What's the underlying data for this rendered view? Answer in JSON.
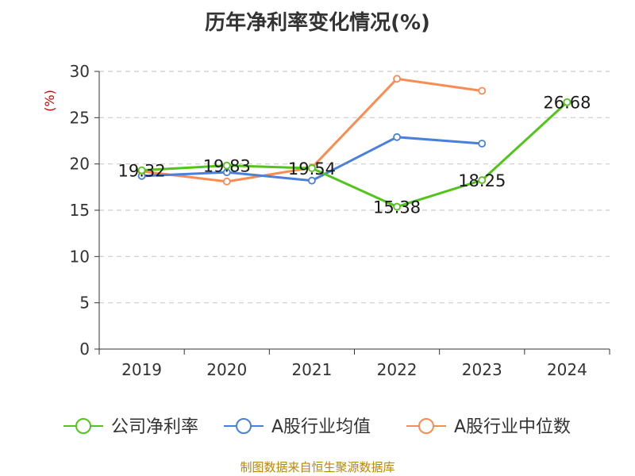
{
  "chart_data": {
    "type": "line",
    "title": "历年净利率变化情况(%)",
    "ylabel": "(%)",
    "xlabel": "",
    "categories": [
      "2019",
      "2020",
      "2021",
      "2022",
      "2023",
      "2024"
    ],
    "ylim": [
      0,
      30
    ],
    "yticks": [
      "0",
      "5",
      "10",
      "15",
      "20",
      "25",
      "30"
    ],
    "grid": "horizontal-dashed",
    "legend_position": "bottom",
    "series": [
      {
        "name": "公司净利率",
        "color": "#52c41a",
        "values": [
          19.32,
          19.83,
          19.54,
          15.38,
          18.25,
          26.68
        ],
        "labels": [
          "19.32",
          "19.83",
          "19.54",
          "15.38",
          "18.25",
          "26.68"
        ]
      },
      {
        "name": "A股行业均值",
        "color": "#4a7fdc",
        "values": [
          18.7,
          19.1,
          18.2,
          22.9,
          22.2,
          null
        ]
      },
      {
        "name": "A股行业中位数",
        "color": "#fa8c52",
        "values": [
          19.2,
          18.1,
          19.6,
          29.2,
          27.9,
          null
        ]
      }
    ]
  },
  "footer": "制图数据来自恒生聚源数据库"
}
